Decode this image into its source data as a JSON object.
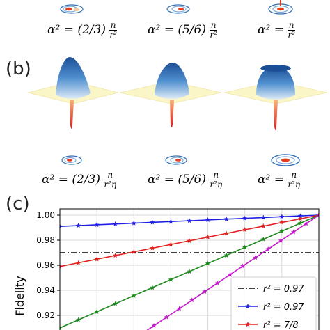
{
  "panel_b_label": "(b)",
  "panel_c_label": "(c)",
  "row_a_formulas": [
    {
      "lhs": "α² =",
      "coef": "(2/3)",
      "num": "n",
      "den": "r²"
    },
    {
      "lhs": "α² =",
      "coef": "(5/6)",
      "num": "n",
      "den": "r²"
    },
    {
      "lhs": "α² =",
      "coef": "",
      "num": "n",
      "den": "r²"
    }
  ],
  "row_b_formulas": [
    {
      "lhs": "α² =",
      "coef": "(2/3)",
      "num": "n",
      "den": "r²η"
    },
    {
      "lhs": "α² =",
      "coef": "(5/6)",
      "num": "n",
      "den": "r²η"
    },
    {
      "lhs": "α² =",
      "coef": "",
      "num": "n",
      "den": "r²η"
    }
  ],
  "colors": {
    "surface_top": "#2f6fb5",
    "surface_light": "#dce9f6",
    "floor": "#fbf6c7",
    "red": "#e23b1e"
  },
  "chart_data": {
    "type": "line",
    "ylabel": "Fidelity",
    "xlabel": "",
    "ylim": [
      0.905,
      1.005
    ],
    "xlim": [
      0,
      7
    ],
    "yticks": [
      0.92,
      0.94,
      0.96,
      0.98,
      1.0
    ],
    "ytick_labels": [
      "0.92",
      "0.94",
      "0.96",
      "0.98",
      "1.00"
    ],
    "grid": true,
    "legend_position": "bottom-right",
    "series": [
      {
        "name": "r² = 0.97",
        "style": "dashdot",
        "color": "#000000",
        "marker": "none",
        "x": [
          0,
          7
        ],
        "y": [
          0.97,
          0.97
        ]
      },
      {
        "name": "r² = 0.97",
        "style": "solid",
        "color": "#1f1fe6",
        "marker": "star",
        "x": [
          0,
          7
        ],
        "y": [
          0.991,
          1.0
        ]
      },
      {
        "name": "r² = 7/8",
        "style": "solid",
        "color": "#e32020",
        "marker": "star",
        "x": [
          0,
          7
        ],
        "y": [
          0.959,
          1.0
        ]
      },
      {
        "name": "",
        "style": "solid",
        "color": "#1e8a1e",
        "marker": "star",
        "x": [
          0,
          7
        ],
        "y": [
          0.91,
          1.0
        ]
      },
      {
        "name": "",
        "style": "solid",
        "color": "#c21bc9",
        "marker": "star",
        "x": [
          2.2,
          7
        ],
        "y": [
          0.905,
          1.0
        ]
      }
    ]
  }
}
